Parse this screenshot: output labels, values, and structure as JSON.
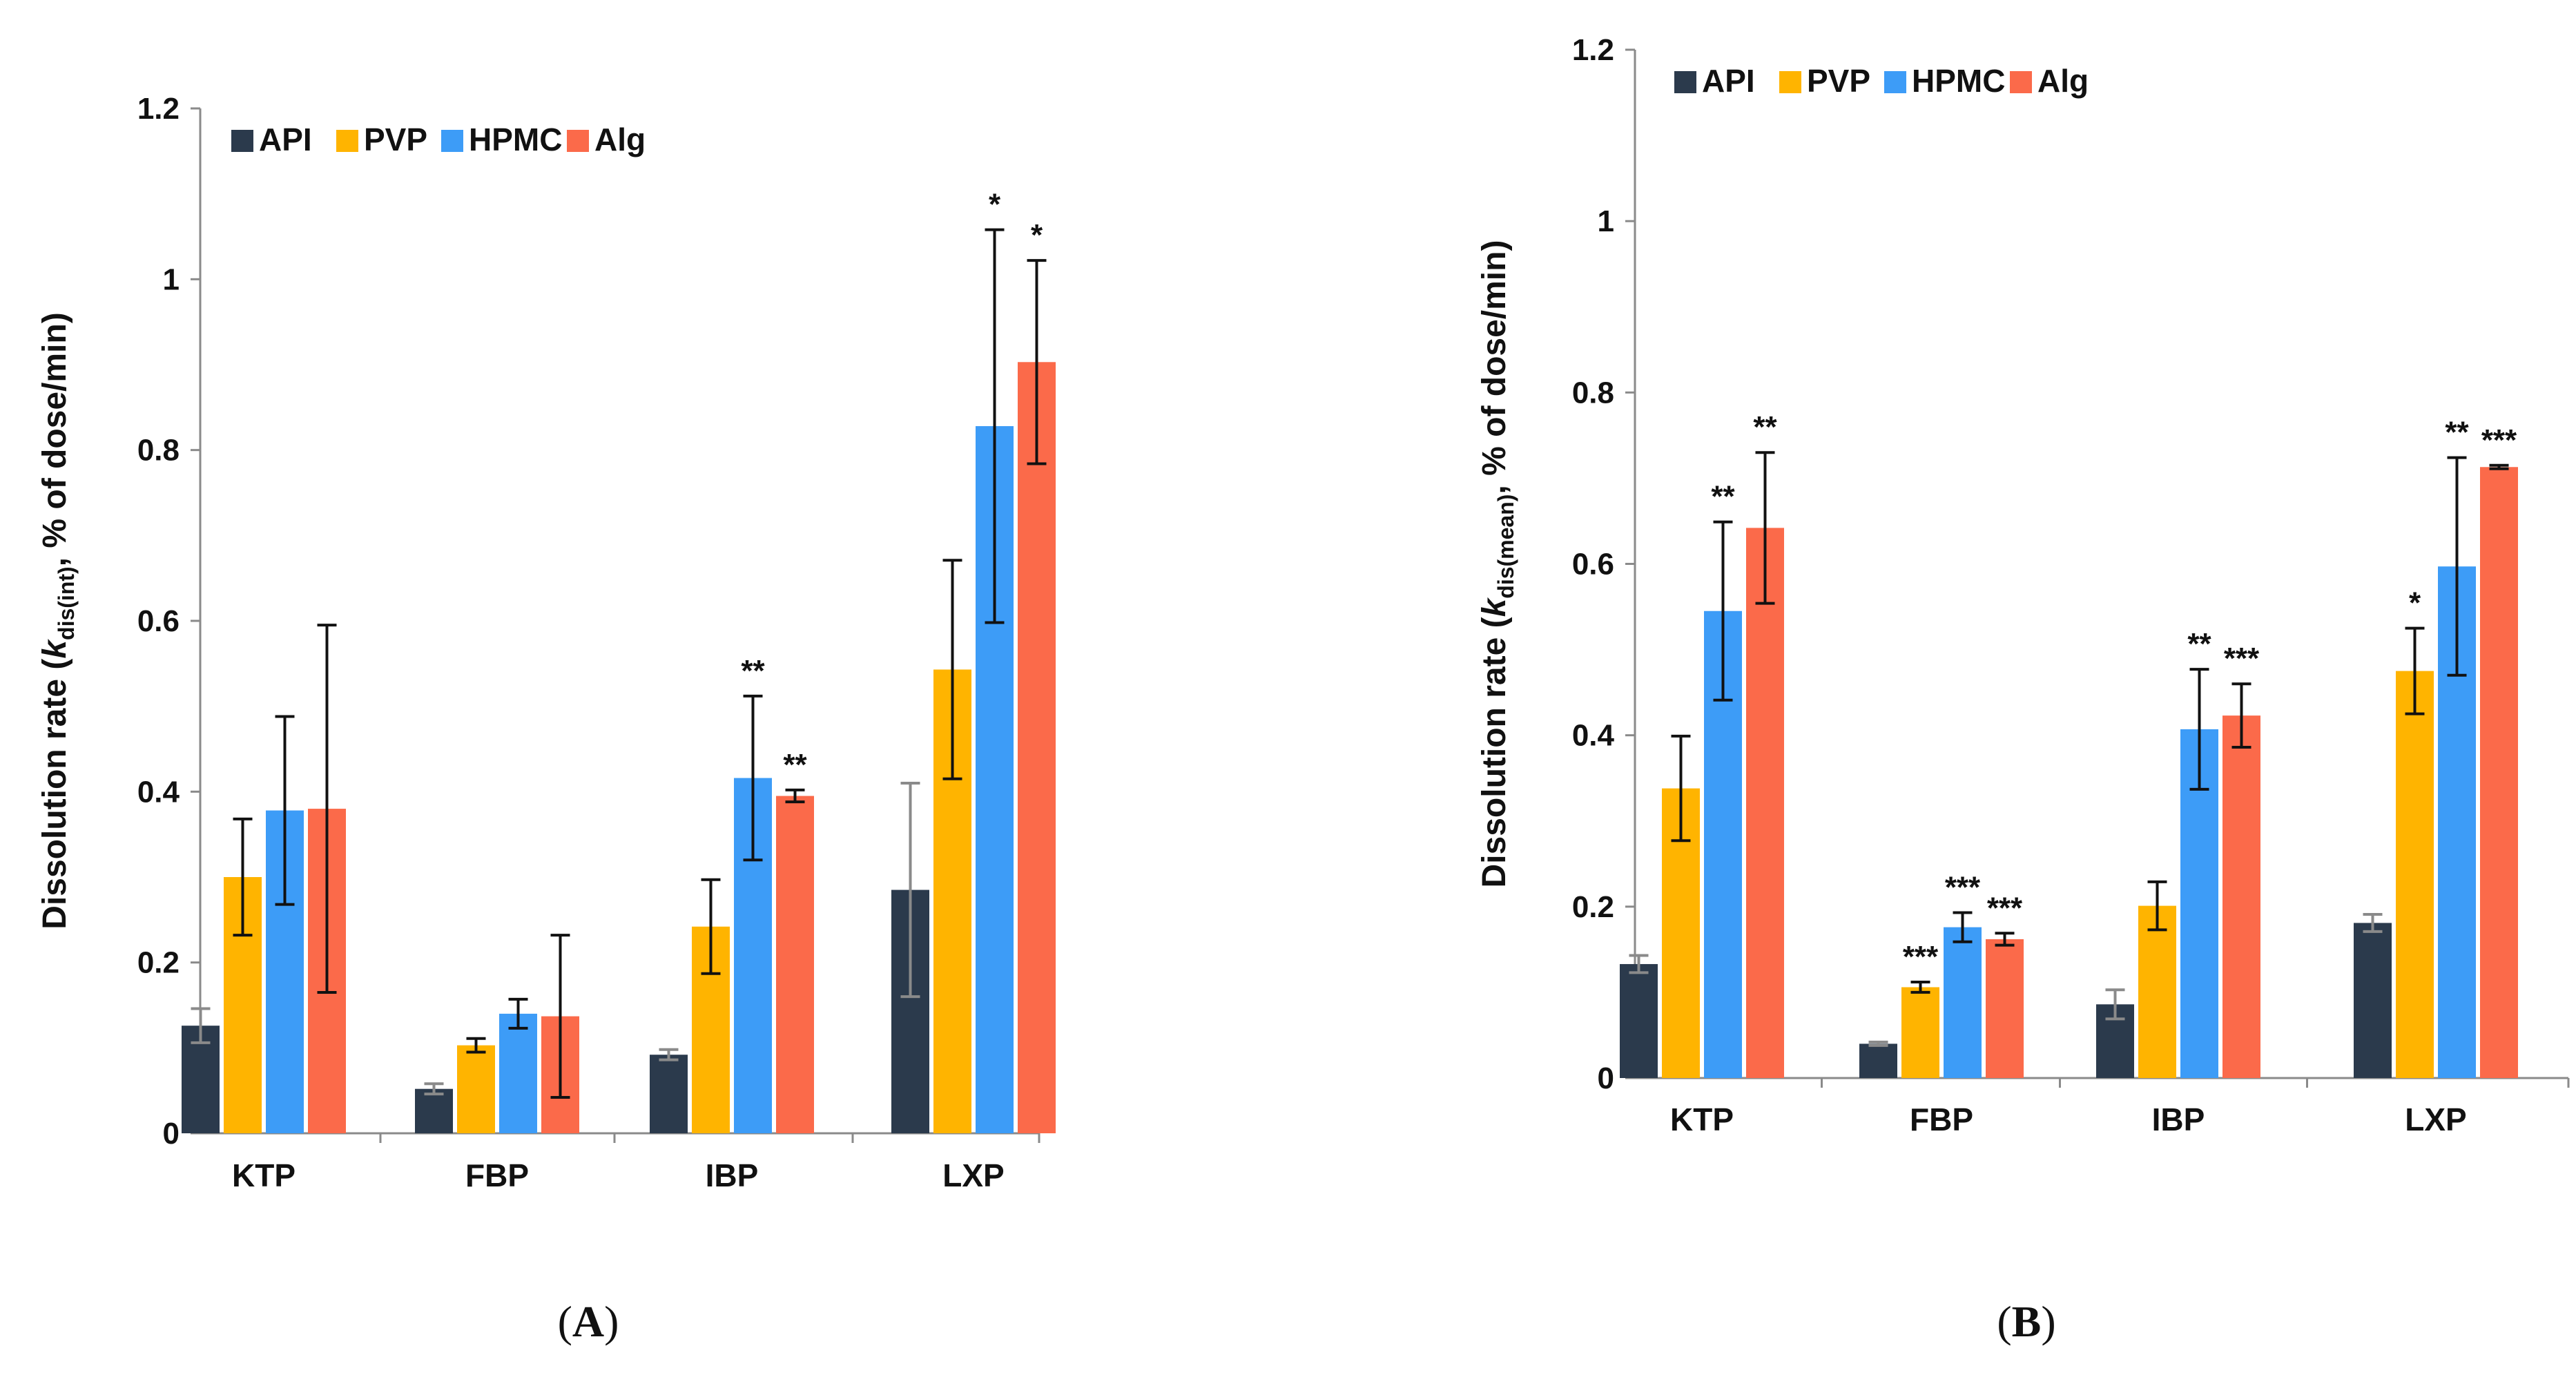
{
  "colors": {
    "API": "#2b3a4c",
    "PVP": "#ffb400",
    "HPMC": "#3d9cf7",
    "Alg": "#fb6a4a",
    "axis": "#8a8a8a",
    "errorbar_dark": "#111111",
    "errorbar_light": "#8a8a8a"
  },
  "chart_data": [
    {
      "type": "bar",
      "panel": "(A)",
      "panel_letter": "A",
      "ylabel_prefix": "Dissolution rate (",
      "ylabel_k": "k",
      "ylabel_sub": "dis(int)",
      "ylabel_suffix": ", % of dose/min)",
      "xlabel": "",
      "ylim": [
        0,
        1.2
      ],
      "yticks": [
        "0",
        "0.2",
        "0.4",
        "0.6",
        "0.8",
        "1",
        "1.2"
      ],
      "legend_position": "top-left",
      "categories": [
        "KTP",
        "FBP",
        "IBP",
        "LXP"
      ],
      "series": [
        {
          "name": "API",
          "values": [
            0.126,
            0.052,
            0.092,
            0.285
          ],
          "errors": [
            0.02,
            0.006,
            0.006,
            0.125
          ]
        },
        {
          "name": "PVP",
          "values": [
            0.3,
            0.103,
            0.242,
            0.543
          ],
          "errors": [
            0.068,
            0.008,
            0.055,
            0.128
          ]
        },
        {
          "name": "HPMC",
          "values": [
            0.378,
            0.14,
            0.416,
            0.828
          ],
          "errors": [
            0.11,
            0.017,
            0.096,
            0.23
          ]
        },
        {
          "name": "Alg",
          "values": [
            0.38,
            0.137,
            0.395,
            0.903
          ],
          "errors": [
            0.215,
            0.095,
            0.007,
            0.119
          ]
        }
      ],
      "annotations": [
        {
          "category": "IBP",
          "series": "HPMC",
          "text": "**"
        },
        {
          "category": "IBP",
          "series": "Alg",
          "text": "**"
        },
        {
          "category": "LXP",
          "series": "HPMC",
          "text": "*"
        },
        {
          "category": "LXP",
          "series": "Alg",
          "text": "*"
        }
      ]
    },
    {
      "type": "bar",
      "panel": "(B)",
      "panel_letter": "B",
      "ylabel_prefix": "Dissolution rate (",
      "ylabel_k": "k",
      "ylabel_sub": "dis(mean)",
      "ylabel_suffix": ", % of dose/min)",
      "xlabel": "",
      "ylim": [
        0,
        1.2
      ],
      "yticks": [
        "0",
        "0.2",
        "0.4",
        "0.6",
        "0.8",
        "1",
        "1.2"
      ],
      "legend_position": "top-left",
      "categories": [
        "KTP",
        "FBP",
        "IBP",
        "LXP"
      ],
      "series": [
        {
          "name": "API",
          "values": [
            0.133,
            0.04,
            0.086,
            0.181
          ],
          "errors": [
            0.01,
            0.002,
            0.017,
            0.01
          ]
        },
        {
          "name": "PVP",
          "values": [
            0.338,
            0.106,
            0.201,
            0.475
          ],
          "errors": [
            0.061,
            0.006,
            0.028,
            0.05
          ]
        },
        {
          "name": "HPMC",
          "values": [
            0.545,
            0.176,
            0.407,
            0.597
          ],
          "errors": [
            0.104,
            0.017,
            0.07,
            0.127
          ]
        },
        {
          "name": "Alg",
          "values": [
            0.642,
            0.162,
            0.423,
            0.713
          ],
          "errors": [
            0.088,
            0.007,
            0.037,
            0.002
          ]
        }
      ],
      "annotations": [
        {
          "category": "KTP",
          "series": "HPMC",
          "text": "**"
        },
        {
          "category": "KTP",
          "series": "Alg",
          "text": "**"
        },
        {
          "category": "FBP",
          "series": "PVP",
          "text": "***"
        },
        {
          "category": "FBP",
          "series": "HPMC",
          "text": "***"
        },
        {
          "category": "FBP",
          "series": "Alg",
          "text": "***"
        },
        {
          "category": "IBP",
          "series": "HPMC",
          "text": "**"
        },
        {
          "category": "IBP",
          "series": "Alg",
          "text": "***"
        },
        {
          "category": "LXP",
          "series": "PVP",
          "text": "*"
        },
        {
          "category": "LXP",
          "series": "HPMC",
          "text": "**"
        },
        {
          "category": "LXP",
          "series": "Alg",
          "text": "***"
        }
      ]
    }
  ]
}
